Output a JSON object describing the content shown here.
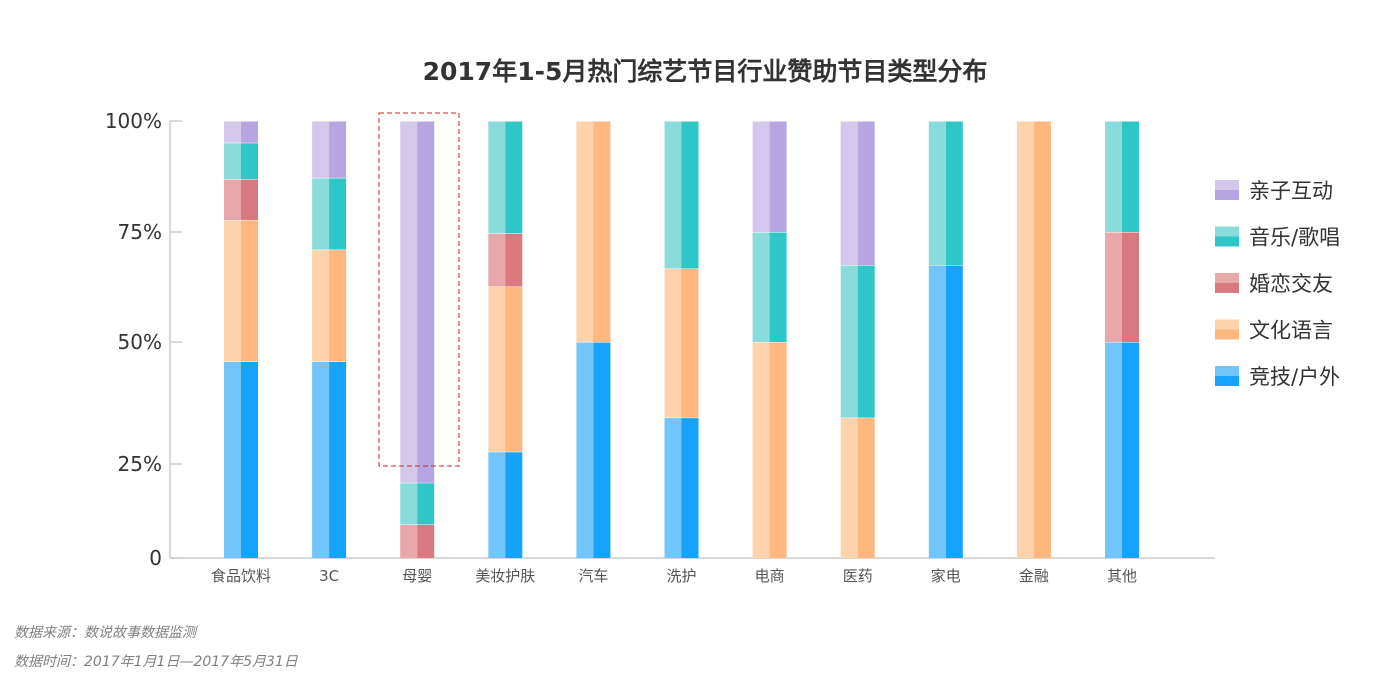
{
  "chart_data": {
    "type": "bar",
    "stacked": true,
    "title": "2017年1-5月热门综艺节目行业赞助节目类型分布",
    "categories": [
      "食品饮料",
      "3C",
      "母婴",
      "美妆护肤",
      "汽车",
      "洗护",
      "电商",
      "医药",
      "家电",
      "金融",
      "其他"
    ],
    "y_ticks": [
      {
        "value": 0,
        "label": "0"
      },
      {
        "value": 0.25,
        "label": "25%"
      },
      {
        "value": 0.5,
        "label": "50%"
      },
      {
        "value": 0.75,
        "label": "75%"
      },
      {
        "value": 1.0,
        "label": "100%"
      }
    ],
    "y_scale_note": "non-linear axis: labeled ticks are not evenly spaced",
    "ylim": [
      0,
      1
    ],
    "legend_position": "right",
    "series": [
      {
        "name": "竞技/户外",
        "color_light": "#72c5fb",
        "color_dark": "#16a3fc",
        "values": [
          0.46,
          0.46,
          0,
          0.275,
          0.5,
          0.345,
          0,
          0,
          0.675,
          0,
          0.5
        ]
      },
      {
        "name": "文化语言",
        "color_light": "#fed2aa",
        "color_dark": "#feb77e",
        "values": [
          0.317,
          0.25,
          0,
          0.351,
          0.5,
          0.322,
          0.5,
          0.345,
          0,
          1.0,
          0
        ]
      },
      {
        "name": "婚恋交友",
        "color_light": "#e8a8ab",
        "color_dark": "#d9787e",
        "values": [
          0.092,
          0,
          0.089,
          0.121,
          0,
          0,
          0,
          0,
          0,
          0,
          0.25
        ]
      },
      {
        "name": "音乐/歌唱",
        "color_light": "#8adbdc",
        "color_dark": "#2fc6c8",
        "values": [
          0.082,
          0.162,
          0.111,
          0.253,
          0,
          0.333,
          0.25,
          0.33,
          0.325,
          0,
          0.25
        ]
      },
      {
        "name": "亲子互动",
        "color_light": "#d3c8eb",
        "color_dark": "#b6a5e0",
        "values": [
          0.049,
          0.128,
          0.8,
          0,
          0,
          0,
          0.25,
          0.325,
          0,
          0,
          0
        ]
      }
    ],
    "highlighted_category": "母婴"
  },
  "footnotes": {
    "source": "数据来源：数说故事数据监测",
    "period": "数据时间：2017年1月1日—2017年5月31日"
  }
}
